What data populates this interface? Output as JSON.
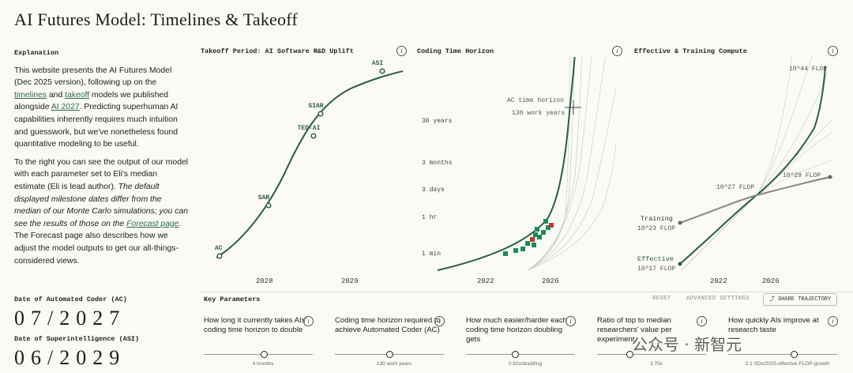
{
  "page": {
    "title": "AI Futures Model: Timelines & Takeoff"
  },
  "explanation": {
    "heading": "Explanation",
    "p1_a": "This website presents the AI Futures Model (Dec 2025 version), following up on the ",
    "link_timelines": "timelines",
    "p1_b": " and ",
    "link_takeoff": "takeoff",
    "p1_c": " models we published alongside ",
    "link_ai2027": "AI 2027",
    "p1_d": ". Predicting superhuman AI capabilities inherently requires much intuition and guesswork, but we've nonetheless found quantitative modeling to be useful.",
    "p2_a": "To the right you can see the output of our model with each parameter set to Eli's median estimate (Eli is lead author). ",
    "p2_b_italic": "The default displayed milestone dates differ from the median of our Monte Carlo simulations; you can see the results of those on the ",
    "link_forecast": "Forecast page",
    "p2_c": ". The Forecast page also describes how we adjust the model outputs to get our all-things-considered views."
  },
  "panels": {
    "takeoff": {
      "title": "Takeoff Period: AI Software R&D Uplift"
    },
    "coding": {
      "title": "Coding Time Horizon",
      "annotation_1": "AC time horizon",
      "annotation_2": "130 work years"
    },
    "compute": {
      "title": "Effective & Training Compute"
    }
  },
  "chart_data": [
    {
      "type": "line",
      "title": "Takeoff Period: AI Software R&D Uplift",
      "x_tick_labels": [
        "2028",
        "2029"
      ],
      "milestones": [
        {
          "label": "AC",
          "date": 2027.5
        },
        {
          "label": "SAR",
          "date": 2028.0
        },
        {
          "label": "TED-AI",
          "date": 2028.5
        },
        {
          "label": "SIAR",
          "date": 2028.75
        },
        {
          "label": "ASI",
          "date": 2029.45
        }
      ]
    },
    {
      "type": "line",
      "title": "Coding Time Horizon",
      "y_scale": "log",
      "y_tick_labels": [
        "1 min",
        "1 hr",
        "3 days",
        "3 months",
        "30 years"
      ],
      "x_tick_labels": [
        "2022",
        "2026"
      ],
      "series": [
        {
          "kind": "model",
          "x": [
            2019.5,
            2022,
            2024,
            2025,
            2026,
            2026.5,
            2027,
            2027.5
          ],
          "y_label_position": [
            "<1 min",
            "~1 min",
            "~5 min",
            "~30 min",
            "~1 hr",
            "~1 day",
            "~3 months",
            "130 work years+"
          ]
        }
      ],
      "observed_points_count": 13,
      "annotation": {
        "label": "AC time horizon",
        "value": "130 work years"
      }
    },
    {
      "type": "line",
      "title": "Effective & Training Compute",
      "y_scale": "log",
      "x_tick_labels": [
        "2022",
        "2026"
      ],
      "y_labels": [
        "10^17 FLOP",
        "10^23 FLOP",
        "10^27 FLOP",
        "10^29 FLOP",
        "10^44 FLOP"
      ],
      "series": [
        {
          "name": "Effective",
          "start": "10^17 FLOP",
          "end": "10^44 FLOP"
        },
        {
          "name": "Training",
          "start": "10^23 FLOP",
          "end": "10^29 FLOP"
        }
      ]
    }
  ],
  "dates": {
    "ac_label": "Date of Automated Coder (AC)",
    "ac_value": "07/2027",
    "asi_label": "Date of Superintelligence (ASI)",
    "asi_value": "06/2029"
  },
  "key_parameters": {
    "title": "Key Parameters",
    "reset": "RESET",
    "advanced": "ADVANCED SETTINGS",
    "share": "SHARE TRAJECTORY",
    "params": [
      {
        "question": "How long it currently takes AIs' coding time horizon to double",
        "value": "4 months",
        "position": 0.55
      },
      {
        "question": "Coding time horizon required to achieve Automated Coder (AC)",
        "value": "130 work years",
        "position": 0.5
      },
      {
        "question": "How much easier/harder each coding time horizon doubling gets",
        "value": "0.92x/doubling",
        "position": 0.45
      },
      {
        "question": "Ratio of top to median researchers' value per experiment",
        "value": "3.70x",
        "position": 0.3
      },
      {
        "question": "How quickly AIs improve at research taste",
        "value": "2.1 SDs/2025-effective-FLOP-growth",
        "position": 0.6
      }
    ]
  },
  "watermark": "公众号 · 新智元"
}
